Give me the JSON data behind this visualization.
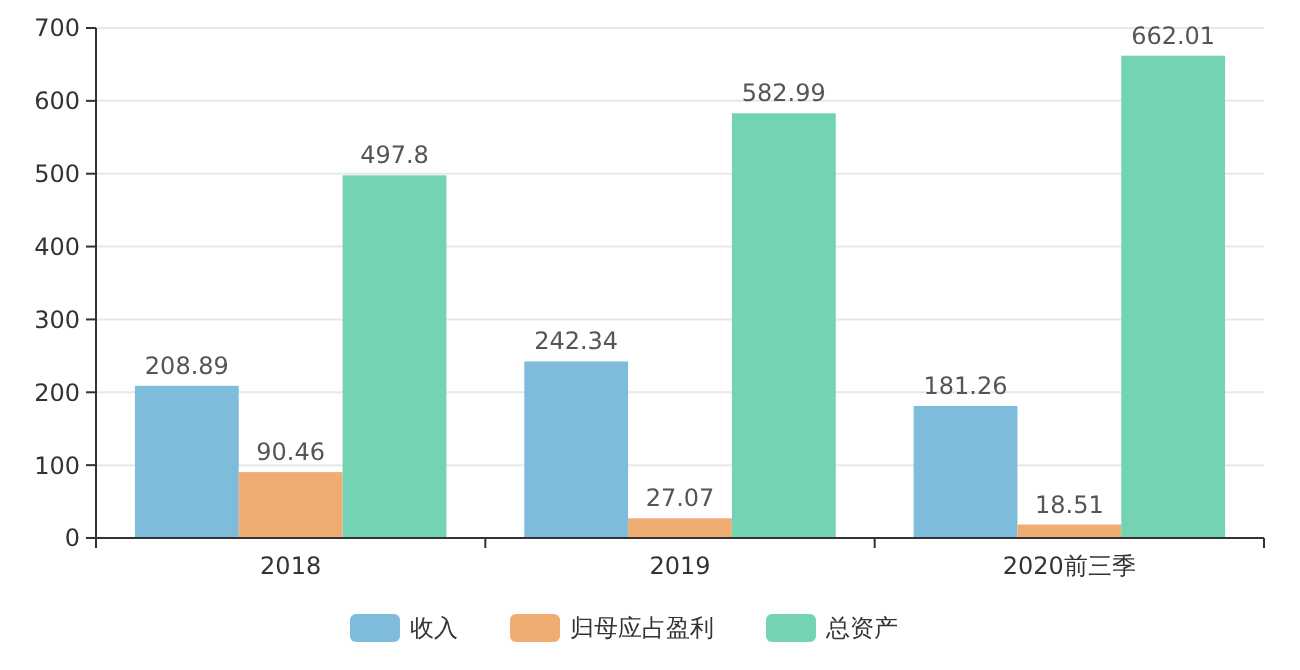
{
  "chart_data": {
    "type": "bar",
    "categories": [
      "2018",
      "2019",
      "2020前三季"
    ],
    "series": [
      {
        "name": "收入",
        "color": "#7fbcdc",
        "values": [
          208.89,
          242.34,
          181.26
        ]
      },
      {
        "name": "归母应占盈利",
        "color": "#f0ad73",
        "values": [
          90.46,
          27.07,
          18.51
        ]
      },
      {
        "name": "总资产",
        "color": "#74d3b2",
        "values": [
          497.8,
          582.99,
          662.01
        ]
      }
    ],
    "ylim": [
      0,
      700
    ],
    "yticks": [
      0,
      100,
      200,
      300,
      400,
      500,
      600,
      700
    ],
    "grid": "y",
    "legend": "bottom",
    "data_labels": true
  }
}
